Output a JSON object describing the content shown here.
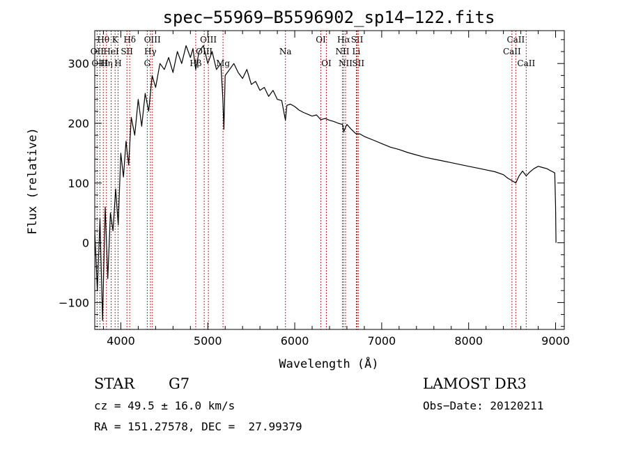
{
  "chart_data": {
    "type": "line",
    "title": "spec−55969−B5596902_sp14−122.fits",
    "xlabel": "Wavelength (Å)",
    "ylabel": "Flux (relative)",
    "xlim": [
      3700,
      9100
    ],
    "ylim": [
      -145,
      355
    ],
    "x_ticks": [
      4000,
      5000,
      6000,
      7000,
      8000,
      9000
    ],
    "y_ticks": [
      -100,
      0,
      100,
      200,
      300
    ],
    "y_tick_labels": [
      "−100",
      "0",
      "100",
      "200",
      "300"
    ],
    "series": [
      {
        "name": "flux",
        "x": [
          3700,
          3730,
          3760,
          3790,
          3820,
          3850,
          3880,
          3910,
          3940,
          3970,
          4000,
          4030,
          4060,
          4090,
          4120,
          4160,
          4200,
          4240,
          4280,
          4320,
          4360,
          4400,
          4450,
          4500,
          4550,
          4600,
          4650,
          4700,
          4750,
          4800,
          4830,
          4861,
          4900,
          4950,
          5000,
          5050,
          5100,
          5150,
          5172,
          5185,
          5200,
          5250,
          5300,
          5350,
          5400,
          5450,
          5500,
          5550,
          5600,
          5650,
          5700,
          5750,
          5800,
          5850,
          5893,
          5910,
          5950,
          6000,
          6050,
          6100,
          6150,
          6200,
          6250,
          6300,
          6350,
          6400,
          6450,
          6500,
          6550,
          6563,
          6580,
          6600,
          6650,
          6700,
          6750,
          6800,
          6900,
          7000,
          7100,
          7200,
          7300,
          7400,
          7500,
          7600,
          7700,
          7800,
          7900,
          8000,
          8100,
          8200,
          8300,
          8400,
          8450,
          8498,
          8542,
          8580,
          8620,
          8662,
          8700,
          8750,
          8800,
          8850,
          8900,
          8950,
          8990,
          9000,
          9005
        ],
        "y": [
          20,
          -80,
          40,
          -130,
          60,
          -60,
          50,
          20,
          90,
          30,
          150,
          110,
          170,
          130,
          210,
          180,
          240,
          195,
          250,
          220,
          280,
          260,
          300,
          290,
          310,
          285,
          320,
          300,
          330,
          310,
          325,
          290,
          320,
          330,
          300,
          320,
          290,
          300,
          245,
          190,
          280,
          290,
          300,
          285,
          275,
          290,
          265,
          270,
          255,
          260,
          245,
          255,
          240,
          238,
          205,
          230,
          232,
          228,
          222,
          218,
          215,
          212,
          214,
          206,
          208,
          205,
          203,
          200,
          198,
          185,
          192,
          198,
          190,
          183,
          182,
          178,
          172,
          166,
          160,
          156,
          151,
          147,
          143,
          140,
          137,
          134,
          131,
          128,
          125,
          122,
          119,
          114,
          108,
          104,
          100,
          112,
          120,
          112,
          118,
          124,
          128,
          126,
          124,
          120,
          117,
          60,
          0
        ]
      }
    ],
    "line_color": "#000000",
    "marker_color": "#b22222",
    "line_markers": [
      {
        "label": "Hθ",
        "x": 3798,
        "row": 0
      },
      {
        "label": "OII",
        "x": 3727,
        "row": 1
      },
      {
        "label": "OIII",
        "x": 3760,
        "row": 2
      },
      {
        "label": "Hη",
        "x": 3835,
        "row": 2
      },
      {
        "label": "HeI",
        "x": 3889,
        "row": 1
      },
      {
        "label": "K",
        "x": 3934,
        "row": 0
      },
      {
        "label": "H",
        "x": 3968,
        "row": 2
      },
      {
        "label": "SII",
        "x": 4070,
        "row": 1
      },
      {
        "label": "Hδ",
        "x": 4102,
        "row": 0
      },
      {
        "label": "OIII",
        "x": 4363,
        "row": 0
      },
      {
        "label": "Hγ",
        "x": 4340,
        "row": 1
      },
      {
        "label": "G",
        "x": 4304,
        "row": 2
      },
      {
        "label": "Hβ",
        "x": 4861,
        "row": 2
      },
      {
        "label": "OIII",
        "x": 5007,
        "row": 0
      },
      {
        "label": "OIII",
        "x": 4959,
        "row": 1
      },
      {
        "label": "Mg",
        "x": 5175,
        "row": 2
      },
      {
        "label": "Na",
        "x": 5893,
        "row": 1
      },
      {
        "label": "OI",
        "x": 6300,
        "row": 0
      },
      {
        "label": "OI",
        "x": 6364,
        "row": 2
      },
      {
        "label": "Hα",
        "x": 6563,
        "row": 0
      },
      {
        "label": "NII",
        "x": 6548,
        "row": 1
      },
      {
        "label": "NII",
        "x": 6584,
        "row": 2
      },
      {
        "label": "SII",
        "x": 6717,
        "row": 0
      },
      {
        "label": "Li",
        "x": 6708,
        "row": 1
      },
      {
        "label": "SII",
        "x": 6731,
        "row": 2
      },
      {
        "label": "CaII",
        "x": 8542,
        "row": 0
      },
      {
        "label": "CaII",
        "x": 8498,
        "row": 1
      },
      {
        "label": "CaII",
        "x": 8662,
        "row": 2
      }
    ]
  },
  "info": {
    "class_label": "STAR",
    "subclass": "G7",
    "survey": "LAMOST DR3",
    "redshift": "cz = 49.5 ± 16.0 km/s",
    "obs_date": "Obs−Date: 20120211",
    "coords": "RA = 151.27578, DEC =  27.99379"
  }
}
